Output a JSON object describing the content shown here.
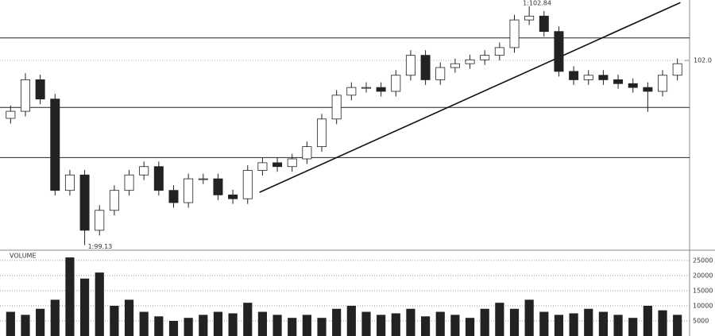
{
  "chart_data": [
    {
      "type": "candlestick",
      "open": [
        101.1,
        101.21,
        101.7,
        101.4,
        99.98,
        100.22,
        99.36,
        99.67,
        99.98,
        100.22,
        100.35,
        99.98,
        99.79,
        100.16,
        100.16,
        99.91,
        99.85,
        100.29,
        100.41,
        100.35,
        100.47,
        100.66,
        101.09,
        101.46,
        101.58,
        101.58,
        101.52,
        101.77,
        102.08,
        101.7,
        101.89,
        101.95,
        102.01,
        102.08,
        102.2,
        102.63,
        102.69,
        102.45,
        101.83,
        101.7,
        101.77,
        101.7,
        101.64,
        101.58,
        101.52,
        101.77
      ],
      "high": [
        101.3,
        101.8,
        101.78,
        101.48,
        100.3,
        100.3,
        99.75,
        100.06,
        100.3,
        100.43,
        100.43,
        100.06,
        100.24,
        100.24,
        100.24,
        99.99,
        100.37,
        100.49,
        100.49,
        100.55,
        100.74,
        101.17,
        101.54,
        101.66,
        101.66,
        101.66,
        101.85,
        102.16,
        102.16,
        101.97,
        102.03,
        102.09,
        102.16,
        102.28,
        102.71,
        102.84,
        102.77,
        102.53,
        101.91,
        101.85,
        101.85,
        101.78,
        101.72,
        101.66,
        101.85,
        102.03
      ],
      "low": [
        101.02,
        101.13,
        101.32,
        99.9,
        99.9,
        99.13,
        99.28,
        99.59,
        99.9,
        100.14,
        99.9,
        99.71,
        99.71,
        100.08,
        99.83,
        99.77,
        99.77,
        100.21,
        100.27,
        100.27,
        100.39,
        100.58,
        101.01,
        101.38,
        101.5,
        101.44,
        101.44,
        101.69,
        101.62,
        101.62,
        101.81,
        101.87,
        101.93,
        102.0,
        102.12,
        102.55,
        102.37,
        101.75,
        101.62,
        101.62,
        101.62,
        101.56,
        101.5,
        101.2,
        101.44,
        101.69
      ],
      "close": [
        101.21,
        101.7,
        101.4,
        99.98,
        100.22,
        99.36,
        99.67,
        99.98,
        100.22,
        100.35,
        99.98,
        99.79,
        100.16,
        100.16,
        99.91,
        99.85,
        100.29,
        100.41,
        100.35,
        100.47,
        100.66,
        101.09,
        101.46,
        101.58,
        101.58,
        101.52,
        101.77,
        102.08,
        101.7,
        101.89,
        101.95,
        102.01,
        102.08,
        102.2,
        102.63,
        102.69,
        102.45,
        101.83,
        101.7,
        101.77,
        101.7,
        101.64,
        101.58,
        101.52,
        101.77,
        101.95
      ],
      "ylim": [
        99.05,
        102.94
      ],
      "yticks": [
        {
          "value": 102.0,
          "label": "102.0"
        }
      ],
      "levels": [
        102.35,
        101.27,
        100.49
      ],
      "trendline": [
        [
          16.8,
          99.95
        ],
        [
          45.2,
          102.9
        ]
      ],
      "high_label": "1:102.84",
      "low_label": "1:99.13"
    },
    {
      "type": "bar",
      "title": "VOLUME",
      "values": [
        8000,
        7000,
        9000,
        12000,
        26000,
        19000,
        21000,
        10000,
        12000,
        8000,
        6500,
        5000,
        6000,
        7000,
        8000,
        7500,
        11000,
        8000,
        7000,
        6000,
        7000,
        6000,
        9000,
        10000,
        8000,
        7000,
        7500,
        9000,
        6500,
        8000,
        7000,
        6000,
        9000,
        11000,
        9000,
        12000,
        8000,
        7000,
        7500,
        9000,
        8000,
        7000,
        6000,
        10000,
        8500,
        7000
      ],
      "color": "#222222",
      "ylim": [
        0,
        27600
      ],
      "yticks": [
        5000,
        10000,
        15000,
        20000,
        25000
      ]
    }
  ]
}
